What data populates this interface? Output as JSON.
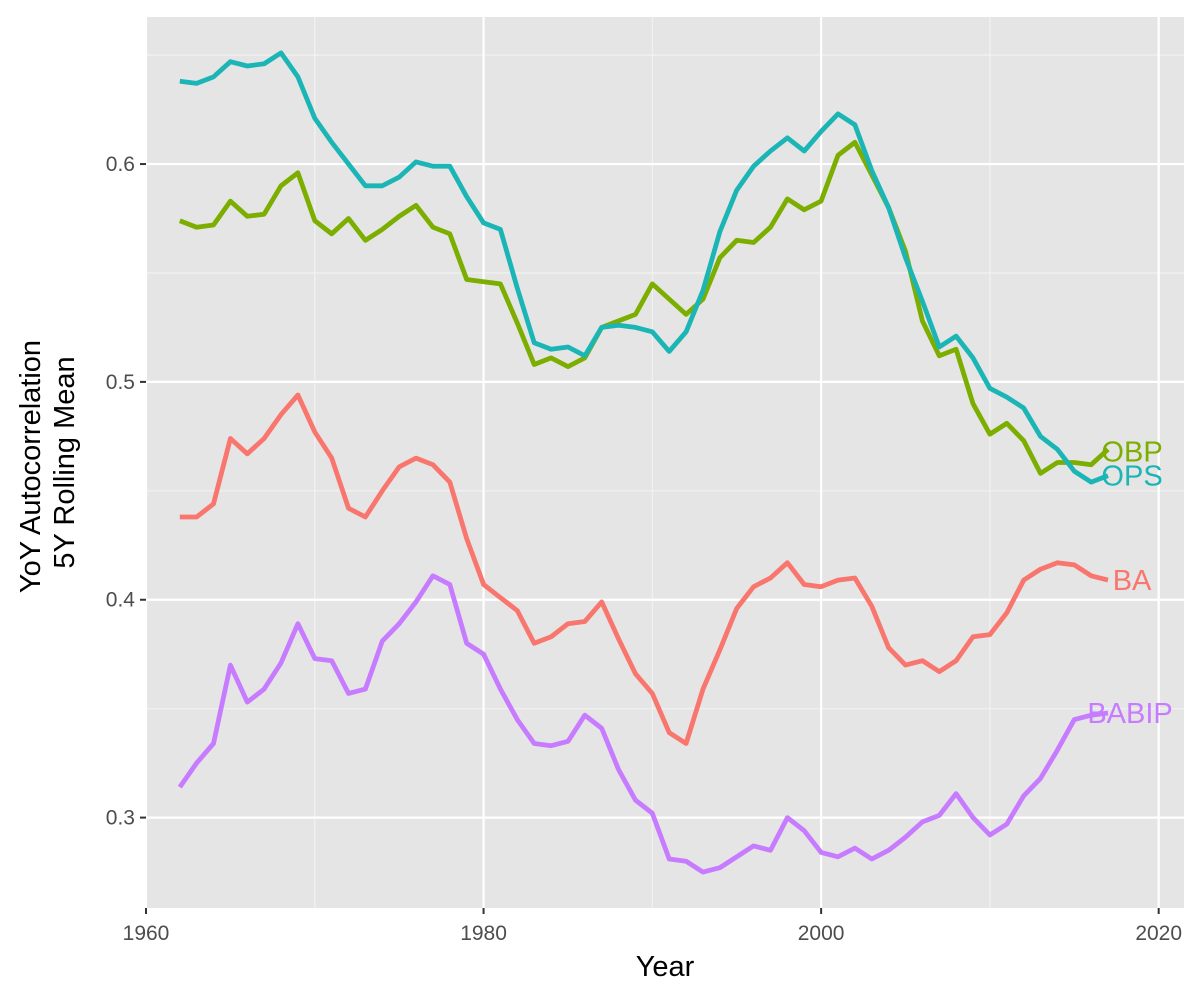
{
  "colors": {
    "panel_background": "#E5E5E5",
    "grid_major": "#FFFFFF",
    "grid_minor": "#F2F2F2",
    "tick_text": "#4D4D4D",
    "axis_title": "#000000"
  },
  "chart_data": {
    "type": "line",
    "title": "",
    "xlabel": "Year",
    "ylabel_lines": [
      "YoY Autocorrelation",
      "5Y Rolling Mean"
    ],
    "xlim": [
      1960,
      2021.5
    ],
    "ylim": [
      0.2585,
      0.6675
    ],
    "x_ticks": [
      1960,
      1980,
      2000,
      2020
    ],
    "x_tick_labels": [
      "1960",
      "1980",
      "2000",
      "2020"
    ],
    "y_ticks": [
      0.3,
      0.4,
      0.5,
      0.6
    ],
    "y_tick_labels": [
      "0.3",
      "0.4",
      "0.5",
      "0.6"
    ],
    "grid": true,
    "legend": "none (series labelled directly at line ends)",
    "x": [
      1962,
      1963,
      1964,
      1965,
      1966,
      1967,
      1968,
      1969,
      1970,
      1971,
      1972,
      1973,
      1974,
      1975,
      1976,
      1977,
      1978,
      1979,
      1980,
      1981,
      1982,
      1983,
      1984,
      1985,
      1986,
      1987,
      1988,
      1989,
      1990,
      1991,
      1992,
      1993,
      1994,
      1995,
      1996,
      1997,
      1998,
      1999,
      2000,
      2001,
      2002,
      2003,
      2004,
      2005,
      2006,
      2007,
      2008,
      2009,
      2010,
      2011,
      2012,
      2013,
      2014,
      2015,
      2016,
      2017
    ],
    "series": [
      {
        "name": "BA",
        "label": "BA",
        "color": "#F8766D",
        "values": [
          0.438,
          0.438,
          0.444,
          0.474,
          0.467,
          0.474,
          0.485,
          0.494,
          0.477,
          0.465,
          0.442,
          0.438,
          0.45,
          0.461,
          0.465,
          0.462,
          0.454,
          0.428,
          0.407,
          0.401,
          0.395,
          0.38,
          0.383,
          0.389,
          0.39,
          0.399,
          0.382,
          0.366,
          0.357,
          0.339,
          0.334,
          0.359,
          0.377,
          0.396,
          0.406,
          0.41,
          0.417,
          0.407,
          0.406,
          0.409,
          0.41,
          0.397,
          0.378,
          0.37,
          0.372,
          0.367,
          0.372,
          0.383,
          0.384,
          0.394,
          0.409,
          0.414,
          0.417,
          0.416,
          0.411,
          0.409
        ]
      },
      {
        "name": "OBP",
        "label": "OBP",
        "color": "#7CAE00",
        "values": [
          0.574,
          0.571,
          0.572,
          0.583,
          0.576,
          0.577,
          0.59,
          0.596,
          0.574,
          0.568,
          0.575,
          0.565,
          0.57,
          0.576,
          0.581,
          0.571,
          0.568,
          0.547,
          0.546,
          0.545,
          0.527,
          0.508,
          0.511,
          0.507,
          0.511,
          0.525,
          0.528,
          0.531,
          0.545,
          0.538,
          0.531,
          0.538,
          0.557,
          0.565,
          0.564,
          0.571,
          0.584,
          0.579,
          0.583,
          0.604,
          0.61,
          0.595,
          0.58,
          0.56,
          0.528,
          0.512,
          0.515,
          0.49,
          0.476,
          0.481,
          0.473,
          0.458,
          0.463,
          0.463,
          0.462,
          0.469
        ]
      },
      {
        "name": "OPS",
        "label": "OPS",
        "color": "#1CB5B5",
        "values": [
          0.638,
          0.637,
          0.64,
          0.647,
          0.645,
          0.646,
          0.651,
          0.64,
          0.621,
          0.61,
          0.6,
          0.59,
          0.59,
          0.594,
          0.601,
          0.599,
          0.599,
          0.585,
          0.573,
          0.57,
          0.543,
          0.518,
          0.515,
          0.516,
          0.512,
          0.525,
          0.526,
          0.525,
          0.523,
          0.514,
          0.523,
          0.542,
          0.569,
          0.588,
          0.599,
          0.606,
          0.612,
          0.606,
          0.615,
          0.623,
          0.618,
          0.597,
          0.58,
          0.557,
          0.537,
          0.516,
          0.521,
          0.511,
          0.497,
          0.493,
          0.488,
          0.475,
          0.469,
          0.459,
          0.454,
          0.457
        ]
      },
      {
        "name": "BABIP",
        "label": "BABIP",
        "color": "#C77CFF",
        "values": [
          0.314,
          0.325,
          0.334,
          0.37,
          0.353,
          0.359,
          0.371,
          0.389,
          0.373,
          0.372,
          0.357,
          0.359,
          0.381,
          0.389,
          0.399,
          0.411,
          0.407,
          0.38,
          0.375,
          0.359,
          0.345,
          0.334,
          0.333,
          0.335,
          0.347,
          0.341,
          0.322,
          0.308,
          0.302,
          0.281,
          0.28,
          0.275,
          0.277,
          0.282,
          0.287,
          0.285,
          0.3,
          0.294,
          0.284,
          0.282,
          0.286,
          0.281,
          0.285,
          0.291,
          0.298,
          0.301,
          0.311,
          0.3,
          0.292,
          0.297,
          0.31,
          0.318,
          0.331,
          0.345,
          0.347,
          0.348
        ]
      }
    ]
  }
}
